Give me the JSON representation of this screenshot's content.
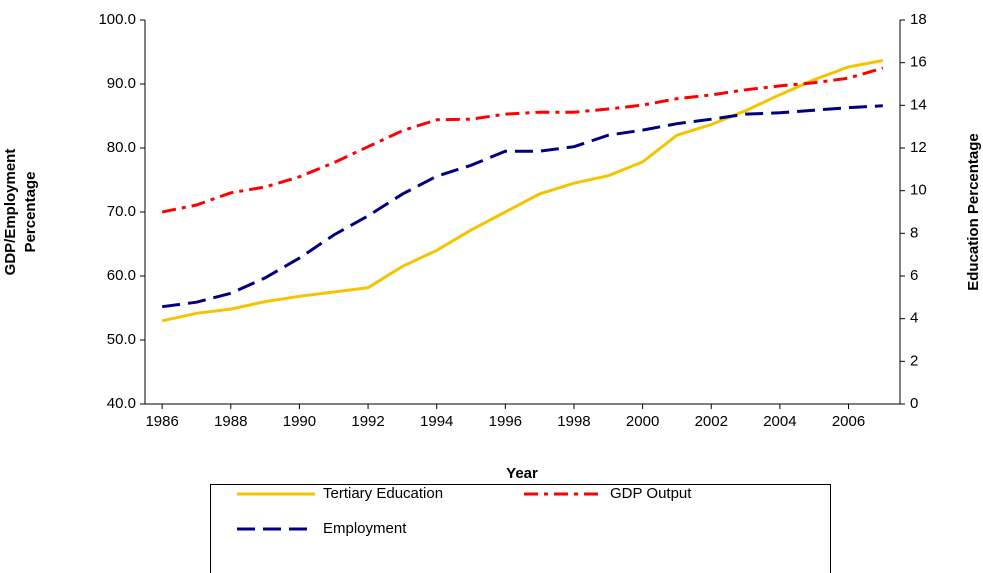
{
  "chart_data": {
    "type": "line",
    "x_label": "Year",
    "y_label": "GDP/Employment Percentage",
    "y2_label": "Education Percentage",
    "x": [
      1986,
      1987,
      1988,
      1989,
      1990,
      1991,
      1992,
      1993,
      1994,
      1995,
      1996,
      1997,
      1998,
      1999,
      2000,
      2001,
      2002,
      2003,
      2004,
      2005,
      2006,
      2007
    ],
    "xlim": [
      1985.5,
      2007.5
    ],
    "xticks": [
      1986,
      1988,
      1990,
      1992,
      1994,
      1996,
      1998,
      2000,
      2002,
      2004,
      2006
    ],
    "ylim": [
      40,
      100
    ],
    "yticks": [
      {
        "value": 40,
        "label": "40.0"
      },
      {
        "value": 50,
        "label": "50.0"
      },
      {
        "value": 60,
        "label": "60.0"
      },
      {
        "value": 70,
        "label": "70.0"
      },
      {
        "value": 80,
        "label": "80.0"
      },
      {
        "value": 90,
        "label": "90.0"
      },
      {
        "value": 100,
        "label": "100.0"
      }
    ],
    "y2lim": [
      0,
      18
    ],
    "y2ticks": [
      0,
      2,
      4,
      6,
      8,
      10,
      12,
      14,
      16,
      18
    ],
    "legend": "bottom",
    "series": [
      {
        "name": "Tertiary Education",
        "color": "#f5c400",
        "line_style": "solid",
        "axis": "y2",
        "values": [
          3.9,
          4.25,
          4.45,
          4.8,
          5.05,
          5.25,
          5.45,
          6.45,
          7.2,
          8.15,
          9.0,
          9.85,
          10.35,
          10.7,
          11.35,
          12.6,
          13.1,
          13.75,
          14.5,
          15.2,
          15.8,
          16.1
        ]
      },
      {
        "name": "GDP Output",
        "color": "#ff0000",
        "line_style": "dashdot",
        "values": [
          70,
          71.1,
          73,
          73.9,
          75.5,
          77.7,
          80.2,
          82.7,
          84.4,
          84.5,
          85.3,
          85.6,
          85.6,
          86.1,
          86.7,
          87.7,
          88.3,
          89.1,
          89.7,
          90.2,
          90.9,
          92.5
        ]
      },
      {
        "name": "Employment",
        "color": "#000080",
        "line_style": "dashed",
        "values": [
          55.2,
          55.9,
          57.3,
          59.7,
          62.8,
          66.4,
          69.4,
          72.8,
          75.6,
          77.3,
          79.5,
          79.5,
          80.2,
          82,
          82.8,
          83.8,
          84.5,
          85.3,
          85.5,
          85.9,
          86.3,
          86.6
        ]
      }
    ]
  }
}
